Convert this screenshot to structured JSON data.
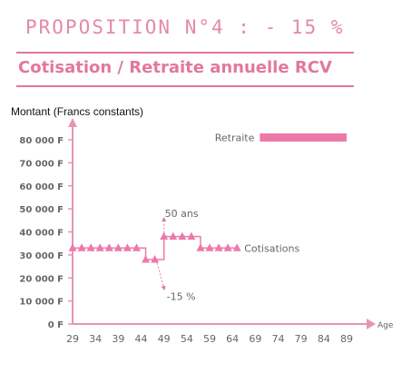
{
  "header": {
    "proposition": "PROPOSITION N°4 : - 15 %",
    "subtitle": "Cotisation / Retraite annuelle RCV"
  },
  "colors": {
    "accent": "#e3779c",
    "marker": "#ec7aa8",
    "axis": "#e694b4",
    "tick_text": "#666666"
  },
  "chart_data": {
    "type": "line",
    "ylabel": "Montant (Francs constants)",
    "xlabel": "Age",
    "y_tick_labels": [
      "0 F",
      "10 000 F",
      "20 000 F",
      "30 000 F",
      "40 000 F",
      "50 000 F",
      "60 000 F",
      "70 000 F",
      "80 000 F"
    ],
    "y_ticks": [
      0,
      10000,
      20000,
      30000,
      40000,
      50000,
      60000,
      70000,
      80000
    ],
    "x_ticks": [
      29,
      34,
      39,
      44,
      49,
      54,
      59,
      64,
      69,
      74,
      79,
      84,
      89
    ],
    "xlim": [
      29,
      89
    ],
    "ylim": [
      0,
      80000
    ],
    "series": [
      {
        "name": "Cotisations",
        "x": [
          29,
          31,
          33,
          35,
          37,
          39,
          41,
          43,
          45,
          47,
          49,
          51,
          53,
          55,
          57,
          59,
          61,
          63,
          65
        ],
        "y": [
          33000,
          33000,
          33000,
          33000,
          33000,
          33000,
          33000,
          33000,
          28000,
          28000,
          38000,
          38000,
          38000,
          38000,
          33000,
          33000,
          33000,
          33000,
          33000
        ]
      },
      {
        "name": "Retraite",
        "x": [
          70,
          89
        ],
        "y": [
          81000,
          81000
        ]
      }
    ],
    "annotations": [
      {
        "text": "50 ans",
        "x": 49,
        "y": 48000
      },
      {
        "text": "-15 %",
        "x": 49,
        "y": 12000
      }
    ],
    "grid": false
  }
}
